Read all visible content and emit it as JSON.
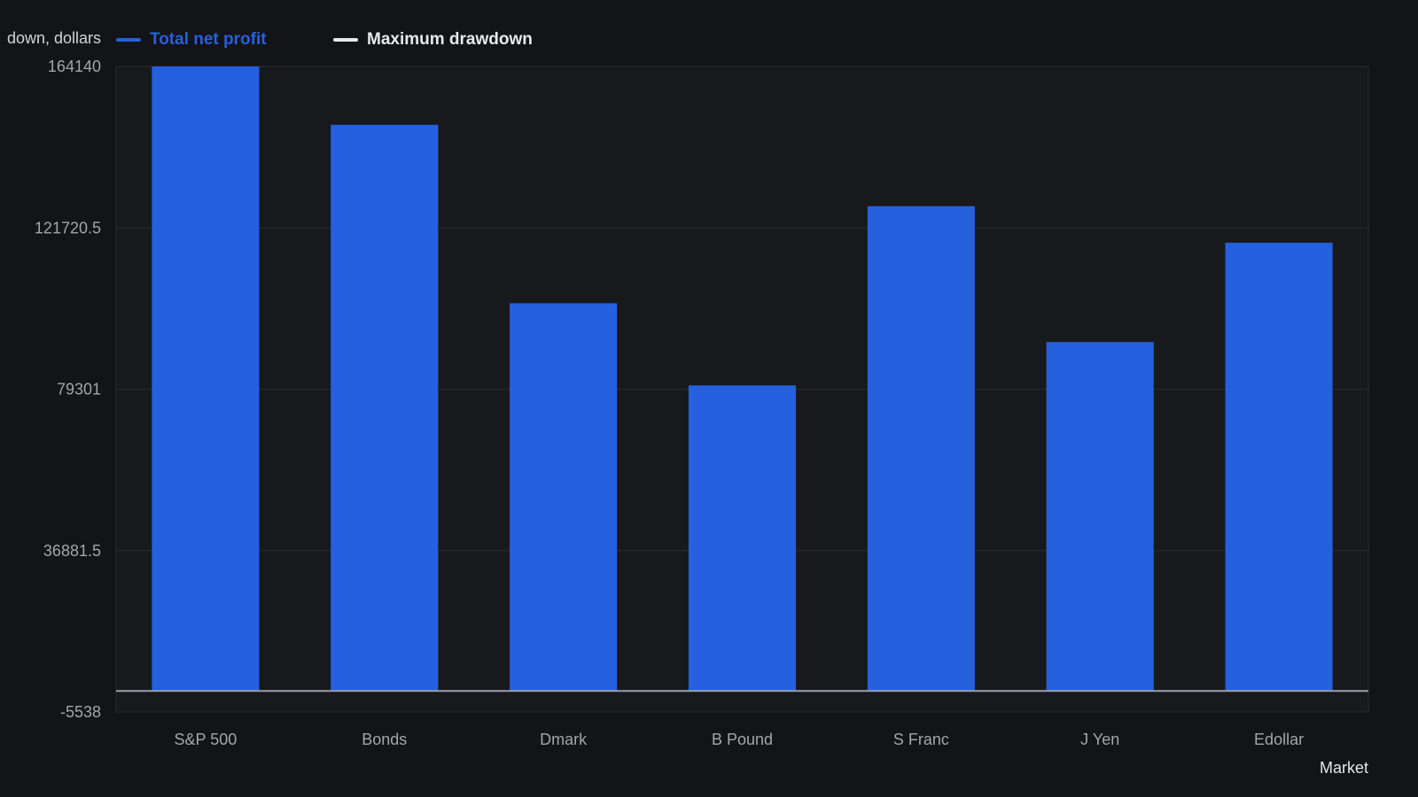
{
  "colors": {
    "background": "#131417",
    "plot_background": "#18191d",
    "profit": "#2560de",
    "drawdown": "#e8e9ec",
    "grid": "#2a2c31",
    "axis_text": "#a3a5ab"
  },
  "chart_data": {
    "type": "bar",
    "title": "",
    "ylabel": "down, dollars",
    "xlabel": "Market",
    "categories": [
      "S&P 500",
      "Bonds",
      "Dmark",
      "B Pound",
      "S Franc",
      "J Yen",
      "Edollar"
    ],
    "series": [
      {
        "name": "Total net profit",
        "color": "#2560de",
        "values": [
          164140,
          148800,
          101900,
          80300,
          127400,
          91700,
          117800
        ]
      },
      {
        "name": "Maximum drawdown",
        "color": "#e8e9ec",
        "values": [
          0,
          0,
          0,
          0,
          0,
          0,
          0
        ]
      }
    ],
    "ylim": [
      -5538,
      164140
    ],
    "yticks": [
      "164140",
      "121720.5",
      "79301",
      "36881.5",
      "-5538"
    ],
    "ytick_values": [
      164140,
      121720.5,
      79301,
      36881.5,
      -5538
    ],
    "grid": true,
    "legend_position": "top-left"
  }
}
